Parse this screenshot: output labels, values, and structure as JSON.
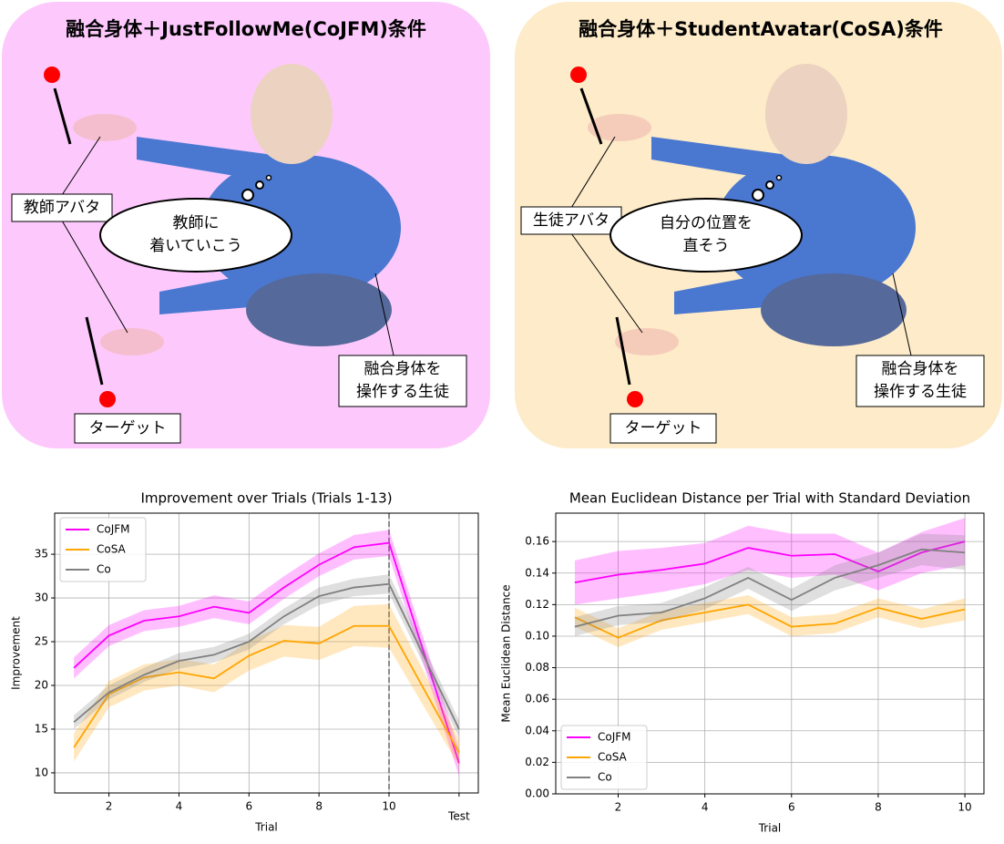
{
  "panels": [
    {
      "title": "融合身体＋JustFollowMe(CoJFM)条件",
      "avatar_label": "教師アバタ",
      "thought": [
        "教師に",
        "着いていこう"
      ],
      "student_label": [
        "融合身体を",
        "操作する生徒"
      ],
      "target_label": "ターゲット"
    },
    {
      "title": "融合身体＋StudentAvatar(CoSA)条件",
      "avatar_label": "生徒アバタ",
      "thought": [
        "自分の位置を",
        "直そう"
      ],
      "student_label": [
        "融合身体を",
        "操作する生徒"
      ],
      "target_label": "ターゲット"
    }
  ],
  "chart_data": [
    {
      "type": "line",
      "title": "Improvement over Trials (Trials 1-13)",
      "xlabel": "Trial",
      "ylabel": "Improvement",
      "x": [
        1,
        2,
        3,
        4,
        5,
        6,
        7,
        8,
        9,
        10,
        12
      ],
      "xlim": [
        0.45,
        12.55
      ],
      "xticks": [
        2,
        4,
        6,
        8,
        10,
        {
          "value": 12,
          "label": "Test"
        }
      ],
      "ylim": [
        7.7,
        39.7
      ],
      "yticks": [
        10,
        15,
        20,
        25,
        30,
        35
      ],
      "grid": true,
      "legend": "upper left",
      "vline": 10,
      "series": [
        {
          "name": "CoJFM",
          "color": "#ff00ff",
          "values": [
            22.0,
            25.7,
            27.4,
            27.9,
            29.0,
            28.3,
            31.2,
            33.8,
            35.8,
            36.3,
            11.1
          ],
          "std": [
            1.2,
            1.2,
            1.2,
            1.2,
            1.3,
            1.3,
            1.3,
            1.3,
            1.4,
            1.5,
            1.5
          ]
        },
        {
          "name": "CoSA",
          "color": "#ffa500",
          "values": [
            12.9,
            19.0,
            20.9,
            21.5,
            20.8,
            23.4,
            25.1,
            24.8,
            26.8,
            26.8,
            12.3
          ],
          "std": [
            1.6,
            1.5,
            1.5,
            1.5,
            1.6,
            1.7,
            1.8,
            1.9,
            2.3,
            2.5,
            1.5
          ]
        },
        {
          "name": "Co",
          "color": "#808080",
          "values": [
            15.8,
            19.2,
            21.2,
            22.8,
            23.5,
            25.0,
            27.9,
            30.2,
            31.2,
            31.6,
            15.0
          ],
          "std": [
            0.8,
            0.8,
            0.8,
            0.9,
            0.9,
            0.9,
            0.9,
            1.0,
            1.0,
            1.1,
            1.0
          ]
        }
      ]
    },
    {
      "type": "line",
      "title": "Mean Euclidean Distance per Trial with Standard Deviation",
      "xlabel": "Trial",
      "ylabel": "Mean Euclidean Distance",
      "x": [
        1,
        2,
        3,
        4,
        5,
        6,
        7,
        8,
        9,
        10
      ],
      "xlim": [
        0.56,
        10.44
      ],
      "xticks": [
        2,
        4,
        6,
        8,
        10
      ],
      "ylim": [
        0,
        0.178
      ],
      "yticks": [
        {
          "value": 0,
          "label": "0.00"
        },
        {
          "value": 0.02,
          "label": "0.02"
        },
        {
          "value": 0.04,
          "label": "0.04"
        },
        {
          "value": 0.06,
          "label": "0.06"
        },
        {
          "value": 0.08,
          "label": "0.08"
        },
        {
          "value": 0.1,
          "label": "0.10"
        },
        {
          "value": 0.12,
          "label": "0.12"
        },
        {
          "value": 0.14,
          "label": "0.14"
        },
        {
          "value": 0.16,
          "label": "0.16"
        }
      ],
      "grid": true,
      "legend": "lower left",
      "series": [
        {
          "name": "CoJFM",
          "color": "#ff00ff",
          "values": [
            0.134,
            0.139,
            0.142,
            0.146,
            0.156,
            0.151,
            0.152,
            0.141,
            0.153,
            0.16
          ],
          "std": [
            0.014,
            0.015,
            0.014,
            0.013,
            0.014,
            0.014,
            0.013,
            0.012,
            0.013,
            0.015
          ]
        },
        {
          "name": "CoSA",
          "color": "#ffa500",
          "values": [
            0.112,
            0.099,
            0.11,
            0.115,
            0.12,
            0.106,
            0.108,
            0.118,
            0.111,
            0.117
          ],
          "std": [
            0.006,
            0.006,
            0.006,
            0.006,
            0.006,
            0.006,
            0.006,
            0.006,
            0.006,
            0.007
          ]
        },
        {
          "name": "Co",
          "color": "#808080",
          "values": [
            0.106,
            0.113,
            0.115,
            0.124,
            0.137,
            0.123,
            0.137,
            0.145,
            0.155,
            0.153
          ],
          "std": [
            0.006,
            0.006,
            0.006,
            0.007,
            0.007,
            0.007,
            0.008,
            0.008,
            0.01,
            0.011
          ]
        }
      ]
    }
  ]
}
